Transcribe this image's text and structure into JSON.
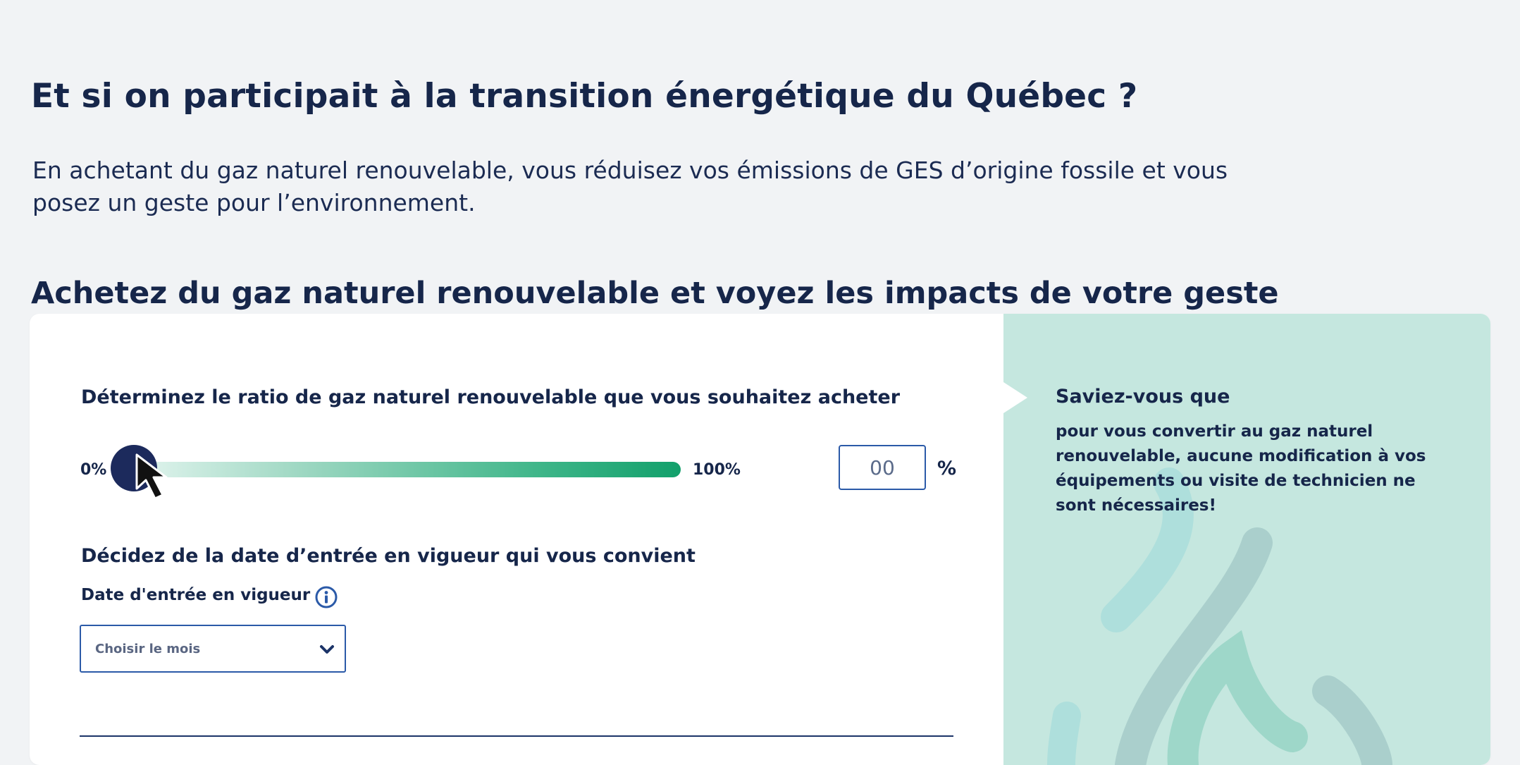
{
  "hero": {
    "title": "Et si on participait à la transition énergétique du Québec ?",
    "intro": "En achetant du gaz naturel renouvelable, vous réduisez vos émissions de GES d’origine fossile et vous posez un geste pour l’environnement."
  },
  "calculator": {
    "heading": "Achetez du gaz naturel renouvelable et voyez les impacts de votre geste",
    "ratio": {
      "label": "Déterminez le ratio de gaz naturel renouvelable que vous souhaitez acheter",
      "min_label": "0%",
      "max_label": "100%",
      "value": 0,
      "input_placeholder": "00",
      "unit": "%"
    },
    "date": {
      "section_label": "Décidez de la date d’entrée en vigueur qui vous convient",
      "field_label": "Date d'entrée en vigueur",
      "info_icon": "info-icon",
      "select_value": "Choisir le mois"
    }
  },
  "aside": {
    "title": "Saviez-vous que",
    "text": "pour vous convertir au gaz naturel renouvelable, aucune modification à vos équipements ou visite de technicien ne sont nécessaires!",
    "background_color": "#c5e7df"
  },
  "colors": {
    "navy": "#16264a",
    "accent_blue": "#2b5aa8",
    "slider_green": "#12a06b",
    "page_bg": "#f1f3f5"
  }
}
